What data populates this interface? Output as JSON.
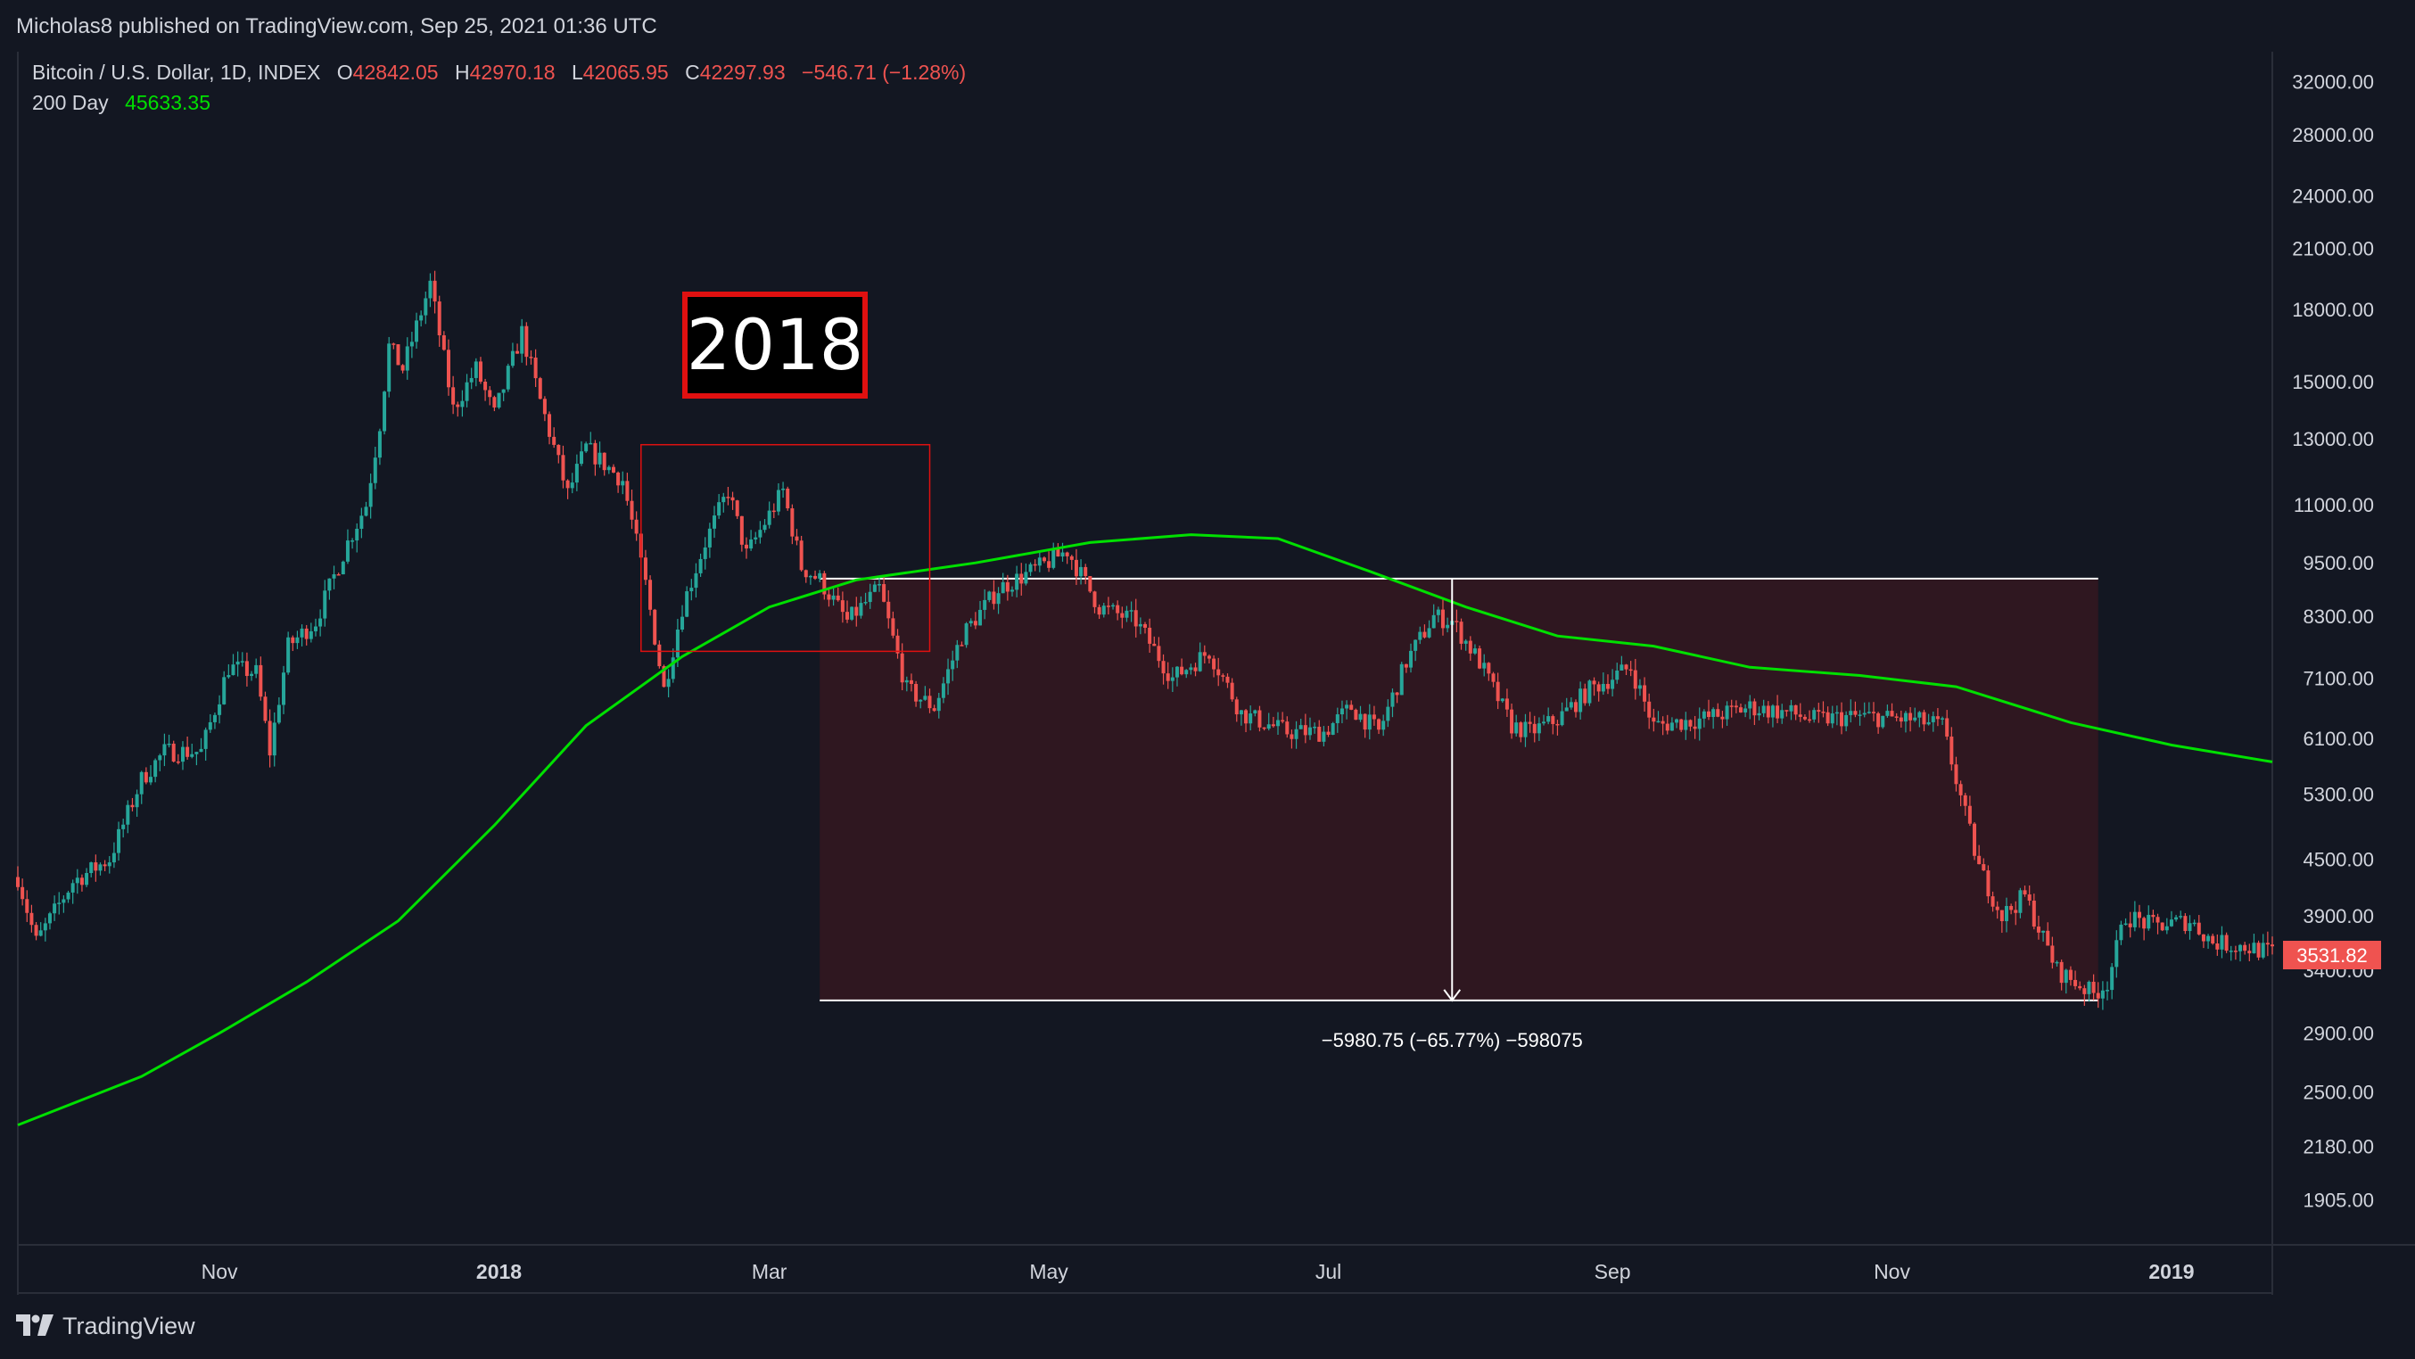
{
  "header": {
    "published": "Micholas8 published on TradingView.com, Sep 25, 2021 01:36 UTC"
  },
  "legend": {
    "symbol": "Bitcoin / U.S. Dollar, 1D, INDEX",
    "o_label": "O",
    "o_value": "42842.05",
    "h_label": "H",
    "h_value": "42970.18",
    "l_label": "L",
    "l_value": "42065.95",
    "c_label": "C",
    "c_value": "42297.93",
    "change": "−546.71 (−1.28%)",
    "ma_label": "200 Day",
    "ma_value": "45633.35"
  },
  "annotations": {
    "year_box": "2018",
    "measure_label": "−5980.75 (−65.77%) −598075",
    "price_badge": "3531.82"
  },
  "footer": {
    "brand": "TradingView"
  },
  "colors": {
    "background": "#131722",
    "up": "#26a69a",
    "down": "#ef5350",
    "ma": "#00e000",
    "range_fill": "#2f1720",
    "box_red": "#e01010"
  },
  "chart_data": {
    "type": "candlestick",
    "title": "Bitcoin / U.S. Dollar, 1D, INDEX",
    "scale": "log",
    "ylim": [
      1700,
      34500
    ],
    "y_ticks": [
      32000,
      28000,
      24000,
      21000,
      18000,
      15000,
      13000,
      11000,
      9500,
      8300,
      7100,
      6100,
      5300,
      4500,
      3900,
      3400,
      2900,
      2500,
      2180,
      1905
    ],
    "y_tick_labels": [
      "32000.00",
      "28000.00",
      "24000.00",
      "21000.00",
      "18000.00",
      "15000.00",
      "13000.00",
      "11000.00",
      "9500.00",
      "8300.00",
      "7100.00",
      "6100.00",
      "5300.00",
      "4500.00",
      "3900.00",
      "3400.00",
      "2900.00",
      "2500.00",
      "2180.00",
      "1905.00"
    ],
    "x_range": [
      "2017-09-18",
      "2019-01-23"
    ],
    "x_ticks": [
      {
        "date": "2017-11-01",
        "label": "Nov",
        "bold": false
      },
      {
        "date": "2018-01-01",
        "label": "2018",
        "bold": true
      },
      {
        "date": "2018-03-01",
        "label": "Mar",
        "bold": false
      },
      {
        "date": "2018-05-01",
        "label": "May",
        "bold": false
      },
      {
        "date": "2018-07-01",
        "label": "Jul",
        "bold": false
      },
      {
        "date": "2018-09-01",
        "label": "Sep",
        "bold": false
      },
      {
        "date": "2018-11-01",
        "label": "Nov",
        "bold": false
      },
      {
        "date": "2019-01-01",
        "label": "2019",
        "bold": true
      }
    ],
    "price_path": [
      [
        "2017-09-18",
        4300
      ],
      [
        "2017-09-22",
        3650
      ],
      [
        "2017-09-30",
        4250
      ],
      [
        "2017-10-08",
        4500
      ],
      [
        "2017-10-15",
        5500
      ],
      [
        "2017-10-20",
        5900
      ],
      [
        "2017-10-28",
        5900
      ],
      [
        "2017-11-03",
        7300
      ],
      [
        "2017-11-09",
        7200
      ],
      [
        "2017-11-12",
        5900
      ],
      [
        "2017-11-16",
        7700
      ],
      [
        "2017-11-22",
        8200
      ],
      [
        "2017-11-29",
        10000
      ],
      [
        "2017-12-03",
        11000
      ],
      [
        "2017-12-06",
        13500
      ],
      [
        "2017-12-08",
        16400
      ],
      [
        "2017-12-11",
        15500
      ],
      [
        "2017-12-17",
        19200
      ],
      [
        "2017-12-22",
        14000
      ],
      [
        "2017-12-27",
        15500
      ],
      [
        "2017-12-31",
        13800
      ],
      [
        "2018-01-06",
        17000
      ],
      [
        "2018-01-10",
        14300
      ],
      [
        "2018-01-16",
        11300
      ],
      [
        "2018-01-20",
        12700
      ],
      [
        "2018-01-28",
        11700
      ],
      [
        "2018-02-02",
        9000
      ],
      [
        "2018-02-06",
        6900
      ],
      [
        "2018-02-10",
        8500
      ],
      [
        "2018-02-15",
        10000
      ],
      [
        "2018-02-20",
        11400
      ],
      [
        "2018-02-24",
        9700
      ],
      [
        "2018-03-04",
        11400
      ],
      [
        "2018-03-08",
        9400
      ],
      [
        "2018-03-12",
        9100
      ],
      [
        "2018-03-18",
        8200
      ],
      [
        "2018-03-25",
        8900
      ],
      [
        "2018-03-31",
        6900
      ],
      [
        "2018-04-06",
        6600
      ],
      [
        "2018-04-12",
        7900
      ],
      [
        "2018-04-20",
        8900
      ],
      [
        "2018-04-29",
        9400
      ],
      [
        "2018-05-05",
        9800
      ],
      [
        "2018-05-12",
        8500
      ],
      [
        "2018-05-20",
        8200
      ],
      [
        "2018-05-28",
        7100
      ],
      [
        "2018-06-05",
        7600
      ],
      [
        "2018-06-12",
        6500
      ],
      [
        "2018-06-22",
        6200
      ],
      [
        "2018-06-30",
        6200
      ],
      [
        "2018-07-06",
        6600
      ],
      [
        "2018-07-12",
        6200
      ],
      [
        "2018-07-18",
        7400
      ],
      [
        "2018-07-24",
        8300
      ],
      [
        "2018-07-28",
        8200
      ],
      [
        "2018-08-03",
        7400
      ],
      [
        "2018-08-10",
        6300
      ],
      [
        "2018-08-14",
        6200
      ],
      [
        "2018-08-20",
        6400
      ],
      [
        "2018-08-27",
        6900
      ],
      [
        "2018-09-05",
        7300
      ],
      [
        "2018-09-10",
        6300
      ],
      [
        "2018-09-20",
        6400
      ],
      [
        "2018-10-01",
        6600
      ],
      [
        "2018-10-10",
        6500
      ],
      [
        "2018-10-15",
        6400
      ],
      [
        "2018-10-25",
        6450
      ],
      [
        "2018-11-05",
        6400
      ],
      [
        "2018-11-12",
        6300
      ],
      [
        "2018-11-15",
        5500
      ],
      [
        "2018-11-20",
        4400
      ],
      [
        "2018-11-25",
        3900
      ],
      [
        "2018-11-30",
        4100
      ],
      [
        "2018-12-07",
        3400
      ],
      [
        "2018-12-15",
        3200
      ],
      [
        "2018-12-18",
        3300
      ],
      [
        "2018-12-22",
        3900
      ],
      [
        "2018-12-28",
        3800
      ],
      [
        "2019-01-05",
        3850
      ],
      [
        "2019-01-10",
        3650
      ],
      [
        "2019-01-18",
        3600
      ],
      [
        "2019-01-23",
        3550
      ]
    ],
    "series": [
      {
        "name": "200 Day",
        "type": "line",
        "points": [
          [
            "2017-09-18",
            2300
          ],
          [
            "2017-10-15",
            2600
          ],
          [
            "2017-11-01",
            2900
          ],
          [
            "2017-11-20",
            3300
          ],
          [
            "2017-12-10",
            3850
          ],
          [
            "2017-12-31",
            4900
          ],
          [
            "2018-01-20",
            6300
          ],
          [
            "2018-02-10",
            7500
          ],
          [
            "2018-03-01",
            8500
          ],
          [
            "2018-03-20",
            9100
          ],
          [
            "2018-04-15",
            9500
          ],
          [
            "2018-05-10",
            10000
          ],
          [
            "2018-06-01",
            10200
          ],
          [
            "2018-06-20",
            10100
          ],
          [
            "2018-07-10",
            9300
          ],
          [
            "2018-07-31",
            8500
          ],
          [
            "2018-08-20",
            7900
          ],
          [
            "2018-09-10",
            7700
          ],
          [
            "2018-10-01",
            7300
          ],
          [
            "2018-10-25",
            7150
          ],
          [
            "2018-11-15",
            6950
          ],
          [
            "2018-12-10",
            6350
          ],
          [
            "2019-01-01",
            6000
          ],
          [
            "2019-01-23",
            5750
          ]
        ]
      }
    ],
    "rectangles": [
      {
        "x0": "2018-02-01",
        "x1": "2018-04-05",
        "y0": 7600,
        "y1": 12800,
        "style": "red-outline"
      },
      {
        "x0": "2018-03-12",
        "x1": "2018-12-16",
        "y0": 3150,
        "y1": 9130,
        "style": "filled-range"
      }
    ],
    "measure": {
      "date": "2018-07-28",
      "from": 9130,
      "to": 3150,
      "label": "−5980.75 (−65.77%) −598075"
    },
    "last_price": 3531.82
  }
}
